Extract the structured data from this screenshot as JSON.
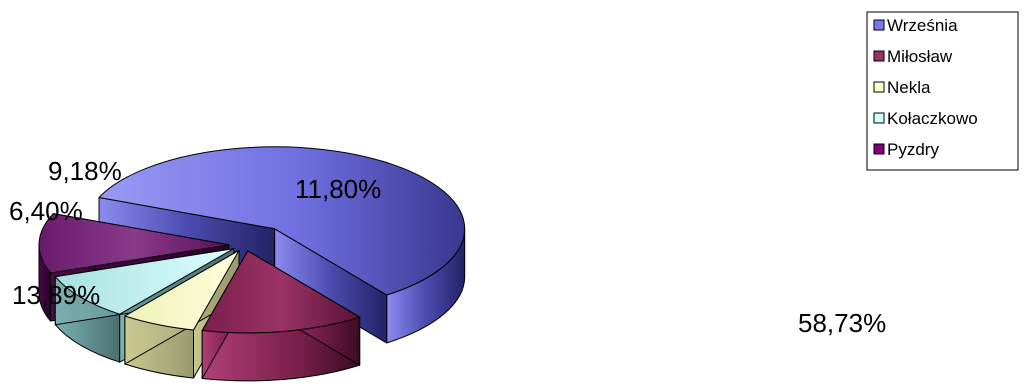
{
  "chart_data": {
    "type": "pie",
    "three_d": true,
    "exploded": true,
    "categories": [
      "Września",
      "Miłosław",
      "Nekla",
      "Kołaczkowo",
      "Pyzdry"
    ],
    "values": [
      58.73,
      13.89,
      6.4,
      9.18,
      11.8
    ],
    "data_labels": [
      "58,73%",
      "13,89%",
      "6,40%",
      "9,18%",
      "11,80%"
    ],
    "colors": [
      "#7777ee",
      "#993366",
      "#ffffcc",
      "#ccffff",
      "#800080"
    ],
    "legend_position": "top-right"
  }
}
